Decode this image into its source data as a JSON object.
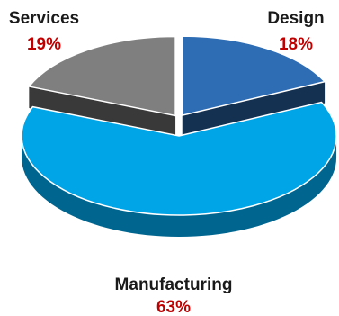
{
  "chart_data": {
    "type": "pie",
    "style": "3d-exploded",
    "title": "",
    "slices": [
      {
        "label": "Services",
        "value": 19,
        "percent_label": "19%",
        "color": "#7f7f7f"
      },
      {
        "label": "Design",
        "value": 18,
        "percent_label": "18%",
        "color": "#2e6db4"
      },
      {
        "label": "Manufacturing",
        "value": 63,
        "percent_label": "63%",
        "color": "#00a5e8"
      }
    ],
    "label_color": "#1a1a1a",
    "percent_color": "#c00000"
  }
}
